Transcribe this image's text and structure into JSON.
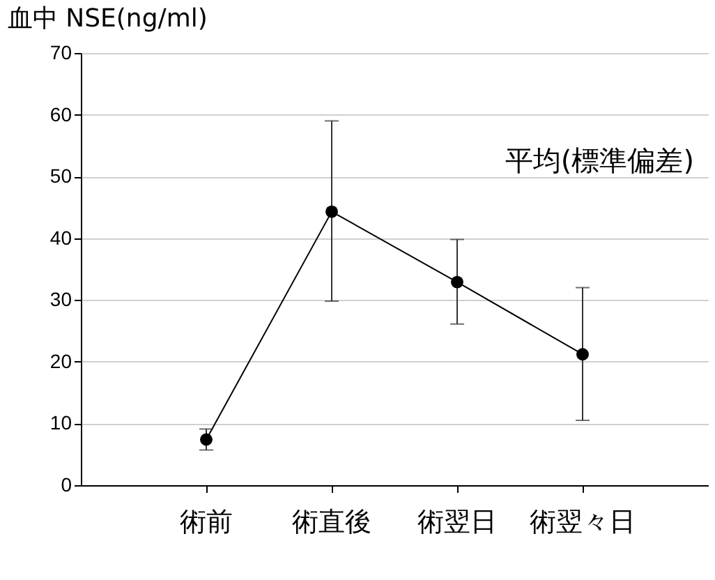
{
  "chart_data": {
    "type": "line",
    "title": "血中 NSE(ng/ml)",
    "annotations": [
      "平均(標準偏差)"
    ],
    "categories": [
      "術前",
      "術直後",
      "術翌日",
      "術翌々日"
    ],
    "series": [
      {
        "color": "#000000",
        "values": [
          7.4,
          44.3,
          32.9,
          21.2
        ],
        "errors": [
          [
            5.7,
            9.1
          ],
          [
            29.8,
            59
          ],
          [
            26.1,
            39.8
          ],
          [
            10.5,
            32
          ]
        ]
      }
    ],
    "ylim": [
      0,
      70
    ],
    "yticks": [
      0,
      10,
      20,
      30,
      40,
      50,
      60,
      70
    ],
    "grid": "y",
    "marker": "circle",
    "line_style": "solid"
  }
}
